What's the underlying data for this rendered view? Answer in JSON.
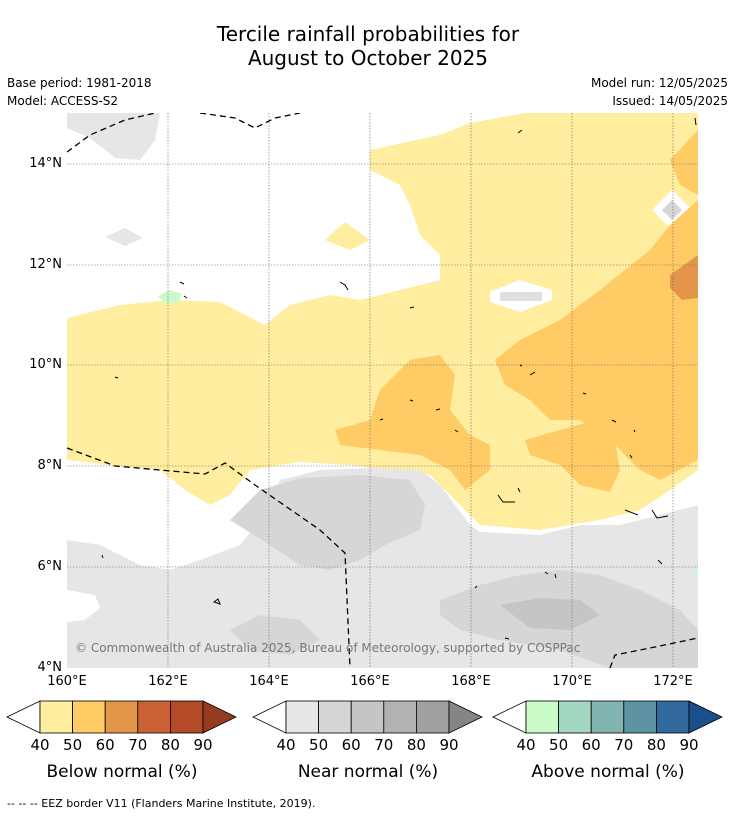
{
  "title_line1": "Tercile rainfall probabilities for",
  "title_line2": "August to October 2025",
  "base_period": "Base period: 1981-2018",
  "model": "Model: ACCESS-S2",
  "model_run": "Model run: 12/05/2025",
  "issued": "Issued: 14/05/2025",
  "copyright": "© Commonwealth of Australia 2025, Bureau of Meteorology, supported by COSPPac",
  "footer": "--  --  -- EEZ border V11 (Flanders Marine Institute, 2019).",
  "lat_labels": [
    "4°N",
    "6°N",
    "8°N",
    "10°N",
    "12°N",
    "14°N"
  ],
  "lon_labels": [
    "160°E",
    "162°E",
    "164°E",
    "166°E",
    "168°E",
    "170°E",
    "172°E"
  ],
  "legend": {
    "below": {
      "title": "Below normal (%)",
      "labels": [
        "40",
        "50",
        "60",
        "70",
        "80",
        "90"
      ],
      "colors": [
        "#ffeda0",
        "#fecb65",
        "#e3964a",
        "#cc6133",
        "#b44a28",
        "#943b22"
      ]
    },
    "near": {
      "title": "Near normal (%)",
      "labels": [
        "40",
        "50",
        "60",
        "70",
        "80",
        "90"
      ],
      "colors": [
        "#e6e6e6",
        "#d6d6d6",
        "#c5c5c5",
        "#b2b2b2",
        "#a0a0a0",
        "#858585"
      ]
    },
    "above": {
      "title": "Above normal (%)",
      "labels": [
        "40",
        "50",
        "60",
        "70",
        "80",
        "90"
      ],
      "colors": [
        "#c9fbc9",
        "#a3d7bf",
        "#82b5b2",
        "#5d93a3",
        "#326a9d",
        "#1b4f8c"
      ]
    }
  }
}
